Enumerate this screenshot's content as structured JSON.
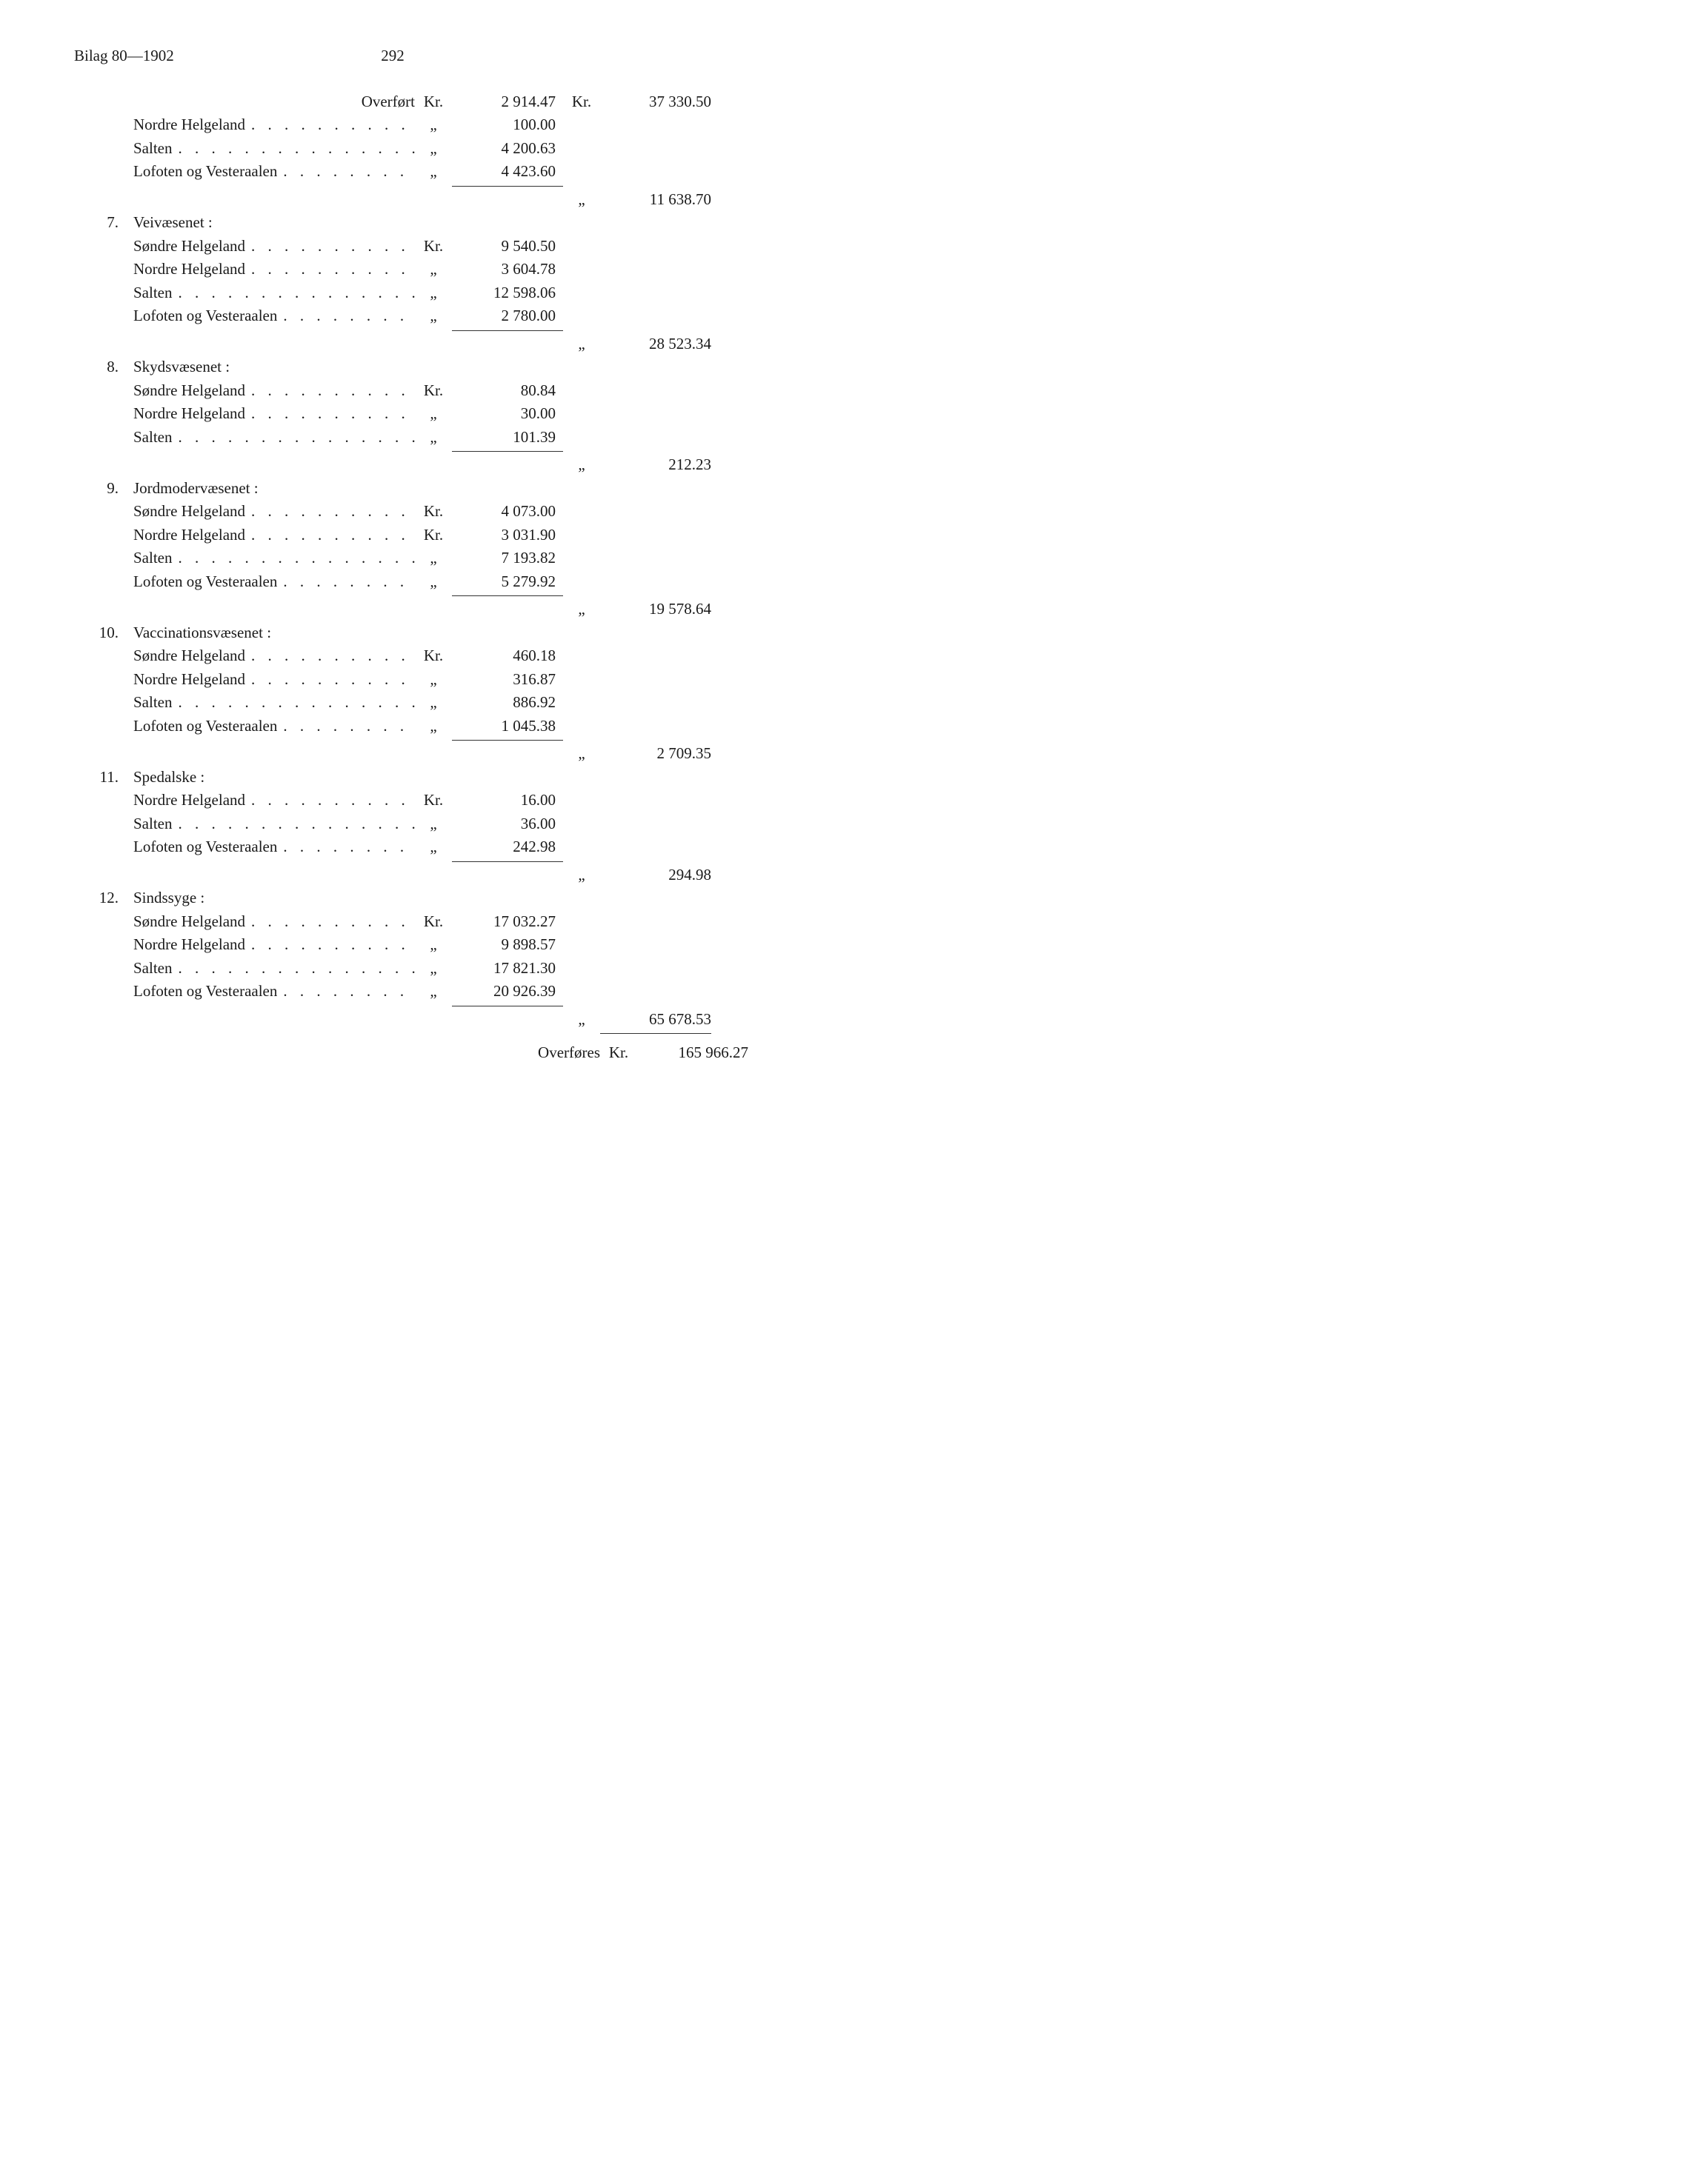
{
  "header": {
    "left": "Bilag 80—1902",
    "page": "292"
  },
  "overfoert": {
    "label": "Overført",
    "unit": "Kr.",
    "amount": "2 914.47",
    "unit2": "Kr.",
    "total": "37 330.50"
  },
  "initial_continuation": {
    "rows": [
      {
        "label": "Nordre Helgeland",
        "unit": "„",
        "amount": "100.00"
      },
      {
        "label": "Salten",
        "unit": "„",
        "amount": "4 200.63"
      },
      {
        "label": "Lofoten og Vesteraalen",
        "unit": "„",
        "amount": "4 423.60"
      }
    ],
    "subtotal_unit": "„",
    "subtotal": "11 638.70"
  },
  "sections": [
    {
      "num": "7.",
      "title": "Veivæsenet :",
      "rows": [
        {
          "label": "Søndre Helgeland",
          "unit": "Kr.",
          "amount": "9 540.50"
        },
        {
          "label": "Nordre Helgeland",
          "unit": "„",
          "amount": "3 604.78"
        },
        {
          "label": "Salten",
          "unit": "„",
          "amount": "12 598.06"
        },
        {
          "label": "Lofoten og Vesteraalen",
          "unit": "„",
          "amount": "2 780.00"
        }
      ],
      "subtotal_unit": "„",
      "subtotal": "28 523.34"
    },
    {
      "num": "8.",
      "title": "Skydsvæsenet :",
      "rows": [
        {
          "label": "Søndre Helgeland",
          "unit": "Kr.",
          "amount": "80.84"
        },
        {
          "label": "Nordre Helgeland",
          "unit": "„",
          "amount": "30.00"
        },
        {
          "label": "Salten",
          "unit": "„",
          "amount": "101.39"
        }
      ],
      "subtotal_unit": "„",
      "subtotal": "212.23"
    },
    {
      "num": "9.",
      "title": "Jordmodervæsenet :",
      "rows": [
        {
          "label": "Søndre Helgeland",
          "unit": "Kr.",
          "amount": "4 073.00"
        },
        {
          "label": "Nordre Helgeland",
          "unit": "Kr.",
          "amount": "3 031.90"
        },
        {
          "label": "Salten",
          "unit": "„",
          "amount": "7 193.82"
        },
        {
          "label": "Lofoten og Vesteraalen",
          "unit": "„",
          "amount": "5 279.92"
        }
      ],
      "subtotal_unit": "„",
      "subtotal": "19 578.64"
    },
    {
      "num": "10.",
      "title": "Vaccinationsvæsenet :",
      "rows": [
        {
          "label": "Søndre Helgeland",
          "unit": "Kr.",
          "amount": "460.18"
        },
        {
          "label": "Nordre Helgeland",
          "unit": "„",
          "amount": "316.87"
        },
        {
          "label": "Salten",
          "unit": "„",
          "amount": "886.92"
        },
        {
          "label": "Lofoten og Vesteraalen",
          "unit": "„",
          "amount": "1 045.38"
        }
      ],
      "subtotal_unit": "„",
      "subtotal": "2 709.35"
    },
    {
      "num": "11.",
      "title": "Spedalske :",
      "rows": [
        {
          "label": "Nordre Helgeland",
          "unit": "Kr.",
          "amount": "16.00"
        },
        {
          "label": "Salten",
          "unit": "„",
          "amount": "36.00"
        },
        {
          "label": "Lofoten og Vesteraalen",
          "unit": "„",
          "amount": "242.98"
        }
      ],
      "subtotal_unit": "„",
      "subtotal": "294.98"
    },
    {
      "num": "12.",
      "title": "Sindssyge :",
      "rows": [
        {
          "label": "Søndre Helgeland",
          "unit": "Kr.",
          "amount": "17 032.27"
        },
        {
          "label": "Nordre Helgeland",
          "unit": "„",
          "amount": "9 898.57"
        },
        {
          "label": "Salten",
          "unit": "„",
          "amount": "17 821.30"
        },
        {
          "label": "Lofoten og Vesteraalen",
          "unit": "„",
          "amount": "20 926.39"
        }
      ],
      "subtotal_unit": "„",
      "subtotal": "65 678.53"
    }
  ],
  "footer": {
    "label": "Overføres",
    "unit": "Kr.",
    "amount": "165 966.27"
  },
  "dotfill": ". . . . . . . . . . . . . . . . . . ."
}
